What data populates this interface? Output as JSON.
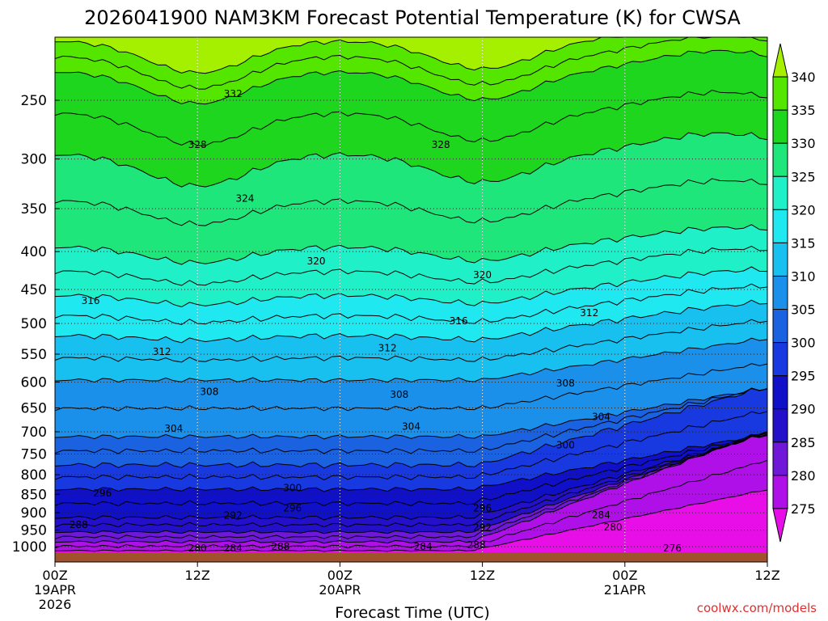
{
  "chart_data": {
    "type": "contour",
    "title": "2026041900 NAM3KM Forecast Potential Temperature (K) for CWSA",
    "xlabel": "Forecast Time (UTC)",
    "ylabel": "",
    "credit": "coolwx.com/models",
    "x_range_hours": [
      0,
      60
    ],
    "y_range_hpa": [
      1050,
      200
    ],
    "x_ticks": [
      {
        "hour": 0,
        "lines": [
          "00Z",
          "19APR",
          "2026"
        ]
      },
      {
        "hour": 12,
        "lines": [
          "12Z"
        ]
      },
      {
        "hour": 24,
        "lines": [
          "00Z",
          "20APR"
        ]
      },
      {
        "hour": 36,
        "lines": [
          "12Z"
        ]
      },
      {
        "hour": 48,
        "lines": [
          "00Z",
          "21APR"
        ]
      },
      {
        "hour": 60,
        "lines": [
          "12Z"
        ]
      }
    ],
    "y_ticks": [
      250,
      300,
      350,
      400,
      450,
      500,
      550,
      600,
      650,
      700,
      750,
      800,
      850,
      900,
      950,
      1000
    ],
    "colorbar": {
      "labels": [
        "340",
        "335",
        "330",
        "325",
        "320",
        "315",
        "310",
        "305",
        "300",
        "295",
        "290",
        "285",
        "280",
        "275"
      ],
      "colors": [
        "#a5f000",
        "#55e600",
        "#1ed61e",
        "#1fe67a",
        "#1ff0c8",
        "#1fe8f0",
        "#18c0f0",
        "#1a90ea",
        "#1a62e0",
        "#1838e0",
        "#1010c8",
        "#2410c8",
        "#7018d8",
        "#b010e8",
        "#e80ee8"
      ]
    },
    "contour_labels": [
      {
        "text": "332",
        "hour": 15,
        "hpa": 245
      },
      {
        "text": "328",
        "hour": 12,
        "hpa": 287
      },
      {
        "text": "328",
        "hour": 32.5,
        "hpa": 287
      },
      {
        "text": "324",
        "hour": 16,
        "hpa": 339
      },
      {
        "text": "320",
        "hour": 22,
        "hpa": 412
      },
      {
        "text": "320",
        "hour": 36,
        "hpa": 430
      },
      {
        "text": "316",
        "hour": 3,
        "hpa": 466
      },
      {
        "text": "316",
        "hour": 34,
        "hpa": 496
      },
      {
        "text": "312",
        "hour": 45,
        "hpa": 484
      },
      {
        "text": "312",
        "hour": 9,
        "hpa": 546
      },
      {
        "text": "312",
        "hour": 28,
        "hpa": 540
      },
      {
        "text": "308",
        "hour": 13,
        "hpa": 618
      },
      {
        "text": "308",
        "hour": 29,
        "hpa": 624
      },
      {
        "text": "308",
        "hour": 43,
        "hpa": 602
      },
      {
        "text": "304",
        "hour": 10,
        "hpa": 693
      },
      {
        "text": "304",
        "hour": 30,
        "hpa": 689
      },
      {
        "text": "304",
        "hour": 46,
        "hpa": 668
      },
      {
        "text": "300",
        "hour": 43,
        "hpa": 730
      },
      {
        "text": "300",
        "hour": 20,
        "hpa": 834
      },
      {
        "text": "296",
        "hour": 4,
        "hpa": 847
      },
      {
        "text": "296",
        "hour": 20,
        "hpa": 887
      },
      {
        "text": "296",
        "hour": 36,
        "hpa": 887
      },
      {
        "text": "292",
        "hour": 15,
        "hpa": 908
      },
      {
        "text": "292",
        "hour": 36,
        "hpa": 943
      },
      {
        "text": "288",
        "hour": 2,
        "hpa": 935
      },
      {
        "text": "288",
        "hour": 19,
        "hpa": 1000
      },
      {
        "text": "288",
        "hour": 35.5,
        "hpa": 995
      },
      {
        "text": "284",
        "hour": 15,
        "hpa": 1005
      },
      {
        "text": "284",
        "hour": 31,
        "hpa": 1000
      },
      {
        "text": "284",
        "hour": 46,
        "hpa": 907
      },
      {
        "text": "280",
        "hour": 12,
        "hpa": 1005
      },
      {
        "text": "280",
        "hour": 47,
        "hpa": 942
      },
      {
        "text": "276",
        "hour": 52,
        "hpa": 1005
      }
    ]
  }
}
